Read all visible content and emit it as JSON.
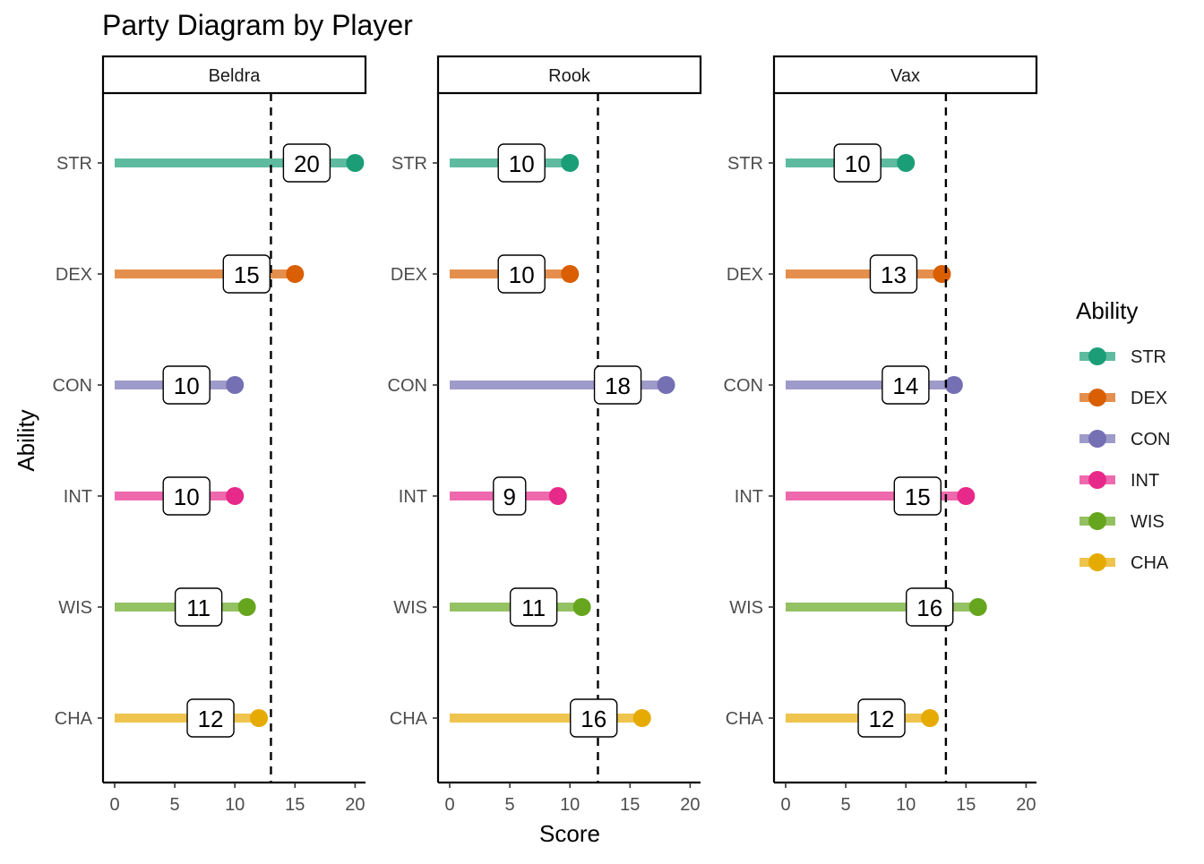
{
  "chart_data": {
    "type": "lollipop",
    "title": "Party Diagram by Player",
    "xlabel": "Score",
    "ylabel": "Ability",
    "xlim": [
      0,
      20
    ],
    "x_ticks": [
      0,
      5,
      10,
      15,
      20
    ],
    "grid": false,
    "legend": {
      "title": "Ability",
      "placement": "right"
    },
    "categories": [
      "STR",
      "DEX",
      "CON",
      "INT",
      "WIS",
      "CHA"
    ],
    "colors": {
      "STR": "#1B9E77",
      "DEX": "#D95F02",
      "CON": "#7570B3",
      "INT": "#E7298A",
      "WIS": "#66A61E",
      "CHA": "#E6AB02"
    },
    "panels": [
      {
        "name": "Beldra",
        "mean_line": 13.0,
        "values": [
          20,
          15,
          10,
          10,
          11,
          12
        ]
      },
      {
        "name": "Rook",
        "mean_line": 12.33,
        "values": [
          10,
          10,
          18,
          9,
          11,
          16
        ]
      },
      {
        "name": "Vax",
        "mean_line": 13.33,
        "values": [
          10,
          13,
          14,
          15,
          16,
          12
        ]
      }
    ]
  }
}
